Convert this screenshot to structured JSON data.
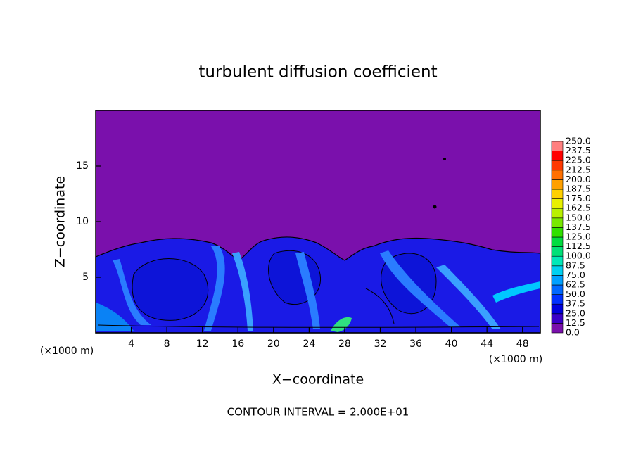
{
  "chart_data": {
    "type": "contour",
    "title": "turbulent diffusion coefficient",
    "x_label": "X−coordinate",
    "y_label": "Z−coordinate",
    "unit_labels": [
      "(×1000 m)",
      "(×1000 m)"
    ],
    "footer": "CONTOUR INTERVAL = 2.000E+01",
    "xlim": [
      0,
      50
    ],
    "xticks": [
      4,
      8,
      12,
      16,
      20,
      24,
      28,
      32,
      36,
      40,
      44,
      48
    ],
    "ylim": [
      0,
      20
    ],
    "yticks": [
      5,
      10,
      15
    ],
    "colorbar": {
      "levels": [
        {
          "value": 0,
          "label": "0.0"
        },
        12.5,
        {
          "value": 25,
          "label": "25.0"
        },
        37.5,
        {
          "value": 50,
          "label": "50.0"
        },
        62.5,
        {
          "value": 75,
          "label": "75.0"
        },
        87.5,
        {
          "value": 100,
          "label": "100.0"
        },
        112.5,
        {
          "value": 125,
          "label": "125.0"
        },
        137.5,
        {
          "value": 150,
          "label": "150.0"
        },
        162.5,
        {
          "value": 175,
          "label": "175.0"
        },
        187.5,
        {
          "value": 200,
          "label": "200.0"
        },
        212.5,
        {
          "value": 225,
          "label": "225.0"
        },
        237.5,
        {
          "value": 250,
          "label": "250.0"
        }
      ],
      "colors": [
        "#7a10ac",
        "#3a00c8",
        "#0000dc",
        "#0030ff",
        "#0068ff",
        "#00a0ff",
        "#00d0f0",
        "#00e8b8",
        "#00e078",
        "#00dc40",
        "#30e000",
        "#78e800",
        "#b8f000",
        "#e8f000",
        "#ffd000",
        "#ffa000",
        "#ff7000",
        "#ff3800",
        "#ff0000",
        "#ff8080"
      ]
    }
  }
}
